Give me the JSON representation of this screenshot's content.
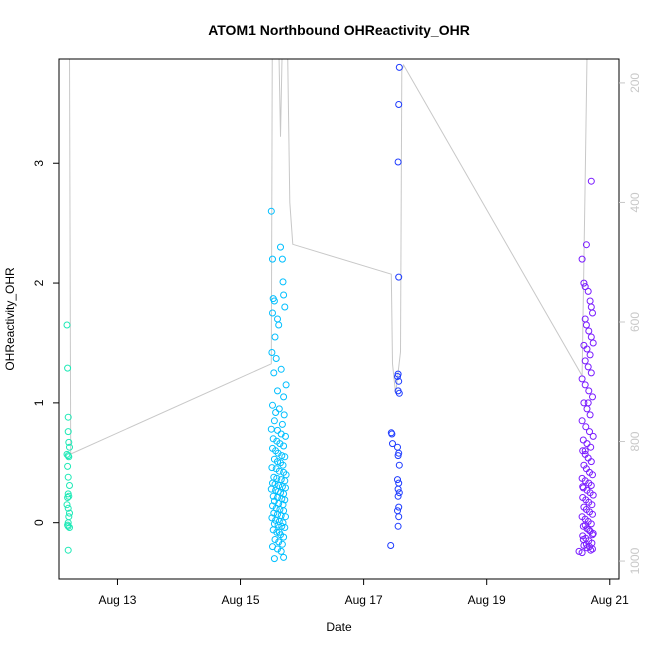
{
  "chart_data": {
    "type": "scatter",
    "title": "ATOM1 Northbound OHReactivity_OHR",
    "xlabel": "Date",
    "ylabel": "OHReactivity_OHR",
    "x_ticks": [
      "Aug 13",
      "Aug 15",
      "Aug 17",
      "Aug 19",
      "Aug 21"
    ],
    "x_tick_days": [
      13,
      15,
      17,
      19,
      21
    ],
    "xlim": [
      12.05,
      21.15
    ],
    "ylim": [
      -0.47,
      3.87
    ],
    "y_ticks": [
      0,
      1,
      2,
      3
    ],
    "secondary_y": {
      "ylim": [
        1030,
        160
      ],
      "ticks": [
        200,
        400,
        600,
        800,
        1000
      ],
      "color": "#c8c8c8"
    },
    "point_color_scale": [
      "#1de9b6",
      "#00bfff",
      "#1e3cff",
      "#7a1cff"
    ],
    "secondary_line": {
      "x": [
        12.2,
        12.22,
        12.24,
        12.26,
        15.5,
        15.52,
        15.56,
        15.6,
        15.65,
        15.7,
        15.75,
        15.8,
        15.85,
        17.45,
        17.47,
        17.52,
        17.6,
        17.62,
        17.65,
        20.55,
        20.6,
        20.65,
        20.7,
        20.72,
        20.75,
        20.78
      ],
      "y": [
        20,
        150,
        820,
        820,
        670,
        20,
        30,
        20,
        290,
        20,
        40,
        400,
        470,
        520,
        670,
        720,
        650,
        180,
        170,
        690,
        360,
        20,
        40,
        20,
        70,
        20
      ]
    },
    "series": [
      {
        "color": "#1de9b6",
        "x": [
          12.18,
          12.19,
          12.2,
          12.2,
          12.21,
          12.22,
          12.18,
          12.2,
          12.21,
          12.19,
          12.2,
          12.22,
          12.2,
          12.21,
          12.19,
          12.18,
          12.2,
          12.22,
          12.21,
          12.2,
          12.19,
          12.2,
          12.22,
          12.2
        ],
        "y": [
          1.65,
          1.29,
          0.88,
          0.76,
          0.67,
          0.63,
          0.57,
          0.56,
          0.55,
          0.47,
          0.38,
          0.31,
          0.24,
          0.22,
          0.21,
          0.15,
          0.12,
          0.08,
          0.05,
          0.0,
          -0.02,
          -0.03,
          -0.04,
          -0.23
        ]
      },
      {
        "color": "#00bfff",
        "x": [
          15.5,
          15.52,
          15.53,
          15.55,
          15.52,
          15.6,
          15.65,
          15.68,
          15.69,
          15.7,
          15.72,
          15.56,
          15.62,
          15.51,
          15.58,
          15.66,
          15.74,
          15.54,
          15.6,
          15.7,
          15.52,
          15.63,
          15.57,
          15.71,
          15.55,
          15.68,
          15.5,
          15.6,
          15.66,
          15.73,
          15.53,
          15.59,
          15.64,
          15.7,
          15.52,
          15.57,
          15.61,
          15.67,
          15.72,
          15.55,
          15.6,
          15.65,
          15.69,
          15.51,
          15.58,
          15.63,
          15.7,
          15.74,
          15.54,
          15.59,
          15.66,
          15.72,
          15.52,
          15.56,
          15.62,
          15.68,
          15.73,
          15.5,
          15.57,
          15.61,
          15.65,
          15.7,
          15.53,
          15.6,
          15.67,
          15.72,
          15.55,
          15.62,
          15.69,
          15.52,
          15.58,
          15.64,
          15.7,
          15.54,
          15.6,
          15.66,
          15.73,
          15.51,
          15.57,
          15.63,
          15.69,
          15.55,
          15.61,
          15.67,
          15.72,
          15.53,
          15.59,
          15.65,
          15.7,
          15.56,
          15.62,
          15.68,
          15.52,
          15.6,
          15.66,
          15.7,
          15.55,
          15.63
        ],
        "y": [
          2.6,
          2.2,
          1.87,
          1.85,
          1.75,
          1.7,
          2.3,
          2.2,
          2.01,
          1.9,
          1.8,
          1.55,
          1.65,
          1.42,
          1.37,
          1.28,
          1.15,
          1.25,
          1.1,
          1.05,
          0.98,
          0.95,
          0.92,
          0.9,
          0.85,
          0.82,
          0.78,
          0.77,
          0.74,
          0.72,
          0.7,
          0.68,
          0.66,
          0.64,
          0.62,
          0.6,
          0.58,
          0.56,
          0.55,
          0.53,
          0.51,
          0.5,
          0.48,
          0.46,
          0.45,
          0.43,
          0.42,
          0.4,
          0.38,
          0.37,
          0.36,
          0.35,
          0.33,
          0.32,
          0.31,
          0.3,
          0.29,
          0.28,
          0.27,
          0.26,
          0.25,
          0.24,
          0.22,
          0.21,
          0.2,
          0.19,
          0.18,
          0.16,
          0.15,
          0.14,
          0.12,
          0.11,
          0.1,
          0.08,
          0.07,
          0.06,
          0.05,
          0.04,
          0.02,
          0.01,
          0.0,
          -0.01,
          -0.02,
          -0.03,
          -0.04,
          -0.06,
          -0.08,
          -0.1,
          -0.12,
          -0.14,
          -0.16,
          -0.18,
          -0.2,
          -0.22,
          -0.24,
          -0.29,
          -0.3,
          -0.08
        ]
      },
      {
        "color": "#1e3cff",
        "x": [
          17.58,
          17.57,
          17.56,
          17.57,
          17.56,
          17.55,
          17.57,
          17.56,
          17.58,
          17.45,
          17.46,
          17.47,
          17.55,
          17.57,
          17.56,
          17.58,
          17.55,
          17.57,
          17.56,
          17.58,
          17.56,
          17.57,
          17.55,
          17.57,
          17.56,
          17.44
        ],
        "y": [
          3.8,
          3.49,
          3.01,
          2.05,
          1.24,
          1.22,
          1.18,
          1.1,
          1.08,
          0.75,
          0.74,
          0.66,
          0.63,
          0.58,
          0.56,
          0.48,
          0.36,
          0.33,
          0.28,
          0.25,
          0.22,
          0.13,
          0.1,
          0.05,
          -0.03,
          -0.19
        ]
      },
      {
        "color": "#7a1cff",
        "x": [
          20.62,
          20.55,
          20.58,
          20.6,
          20.65,
          20.68,
          20.7,
          20.72,
          20.6,
          20.62,
          20.66,
          20.7,
          20.73,
          20.58,
          20.63,
          20.68,
          20.6,
          20.65,
          20.7,
          20.55,
          20.6,
          20.66,
          20.72,
          20.58,
          20.63,
          20.68,
          20.55,
          20.61,
          20.67,
          20.73,
          20.57,
          20.63,
          20.69,
          20.56,
          20.6,
          20.65,
          20.7,
          20.58,
          20.62,
          20.67,
          20.72,
          20.55,
          20.6,
          20.66,
          20.7,
          20.57,
          20.63,
          20.68,
          20.73,
          20.56,
          20.61,
          20.66,
          20.71,
          20.58,
          20.62,
          20.67,
          20.72,
          20.55,
          20.6,
          20.65,
          20.7,
          20.57,
          20.63,
          20.68,
          20.73,
          20.56,
          20.61,
          20.66,
          20.71,
          20.58,
          20.63,
          20.69,
          20.55,
          20.6,
          20.66,
          20.72,
          20.57,
          20.62,
          20.67,
          20.72,
          20.56,
          20.6,
          20.65,
          20.7,
          20.5
        ],
        "y": [
          2.32,
          2.2,
          2.0,
          1.97,
          1.93,
          1.85,
          1.8,
          1.75,
          1.7,
          1.65,
          1.6,
          1.55,
          1.5,
          1.48,
          1.45,
          1.4,
          1.35,
          1.3,
          1.25,
          1.2,
          1.15,
          1.1,
          1.05,
          1.0,
          0.95,
          0.9,
          0.85,
          0.8,
          0.76,
          0.72,
          0.69,
          0.66,
          0.63,
          0.6,
          0.57,
          0.54,
          0.51,
          0.48,
          0.45,
          0.42,
          0.4,
          0.37,
          0.35,
          0.33,
          0.31,
          0.29,
          0.27,
          0.25,
          0.23,
          0.21,
          0.19,
          0.17,
          0.15,
          0.13,
          0.11,
          0.09,
          0.07,
          0.05,
          0.03,
          0.01,
          -0.01,
          -0.03,
          -0.05,
          -0.07,
          -0.09,
          -0.11,
          -0.13,
          -0.15,
          -0.17,
          -0.19,
          -0.21,
          -0.23,
          -0.25,
          -0.02,
          -0.06,
          -0.1,
          -0.14,
          -0.18,
          -0.2,
          -0.22,
          0.3,
          0.6,
          1.0,
          2.85,
          -0.24
        ]
      }
    ]
  }
}
